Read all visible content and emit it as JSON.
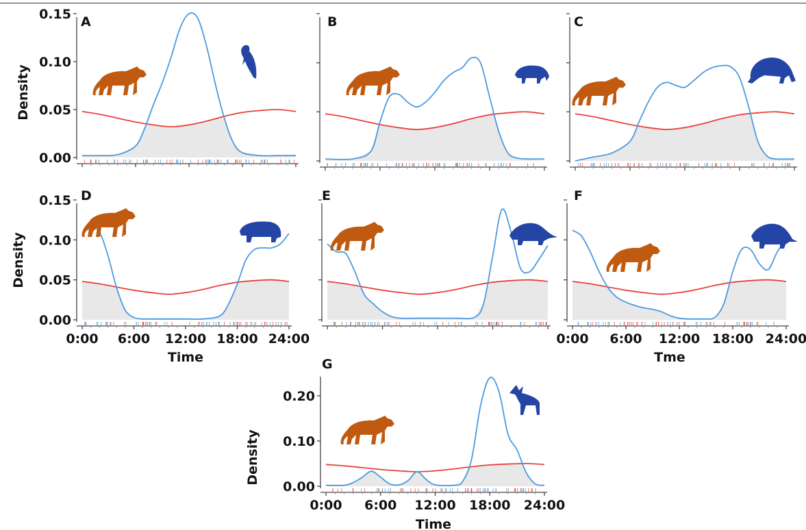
{
  "figure": {
    "colors": {
      "predator": "#e8413a",
      "prey": "#4a9ae0",
      "overlap_fill": "#e8e8e8",
      "predator_silhouette": "#c05a10",
      "prey_silhouette": "#2445a5",
      "axis": "#444444"
    },
    "icons": {
      "predator": "puma-silhouette-icon",
      "prey_a": "bird-silhouette-icon",
      "prey_b": "small-mammal-silhouette-icon",
      "prey_c": "anteater-silhouette-icon",
      "prey_d": "paca-silhouette-icon",
      "prey_e": "armadillo-silhouette-icon",
      "prey_f": "armadillo-silhouette-icon",
      "prey_g": "deer-silhouette-icon"
    }
  },
  "chart_data": [
    {
      "panel": "A",
      "type": "line",
      "xlim": [
        0,
        24
      ],
      "ylim": [
        0,
        0.15
      ],
      "yticks": [
        "0.00",
        "0.05",
        "0.10",
        "0.15"
      ],
      "xticks": [],
      "ylabel": "Density",
      "xlabel": "",
      "series": [
        {
          "role": "predator",
          "x": [
            0,
            2,
            4,
            6,
            8,
            10,
            12,
            14,
            16,
            18,
            20,
            22,
            24
          ],
          "values": [
            0.048,
            0.045,
            0.041,
            0.037,
            0.034,
            0.032,
            0.034,
            0.038,
            0.043,
            0.047,
            0.049,
            0.05,
            0.048
          ]
        },
        {
          "role": "prey",
          "x": [
            0,
            2,
            4,
            6,
            7,
            8,
            9,
            10,
            11,
            12,
            13,
            14,
            15,
            16,
            17,
            18,
            20,
            22,
            24
          ],
          "values": [
            0.002,
            0.002,
            0.003,
            0.012,
            0.03,
            0.055,
            0.078,
            0.105,
            0.135,
            0.15,
            0.145,
            0.115,
            0.075,
            0.04,
            0.015,
            0.005,
            0.002,
            0.002,
            0.002
          ]
        }
      ]
    },
    {
      "panel": "B",
      "type": "line",
      "xlim": [
        0,
        24
      ],
      "ylim": [
        0,
        0.15
      ],
      "yticks": [],
      "xticks": [],
      "ylabel": "",
      "xlabel": "",
      "series": [
        {
          "role": "predator",
          "x": [
            0,
            2,
            4,
            6,
            8,
            10,
            12,
            14,
            16,
            18,
            20,
            22,
            24
          ],
          "values": [
            0.048,
            0.045,
            0.041,
            0.037,
            0.034,
            0.032,
            0.034,
            0.038,
            0.043,
            0.047,
            0.049,
            0.05,
            0.048
          ]
        },
        {
          "role": "prey",
          "x": [
            0,
            3,
            5,
            6,
            7,
            8,
            9,
            10,
            11,
            12,
            13,
            14,
            15,
            16,
            17,
            18,
            19,
            20,
            21,
            22,
            24
          ],
          "values": [
            0.002,
            0.002,
            0.01,
            0.04,
            0.065,
            0.068,
            0.06,
            0.055,
            0.06,
            0.07,
            0.082,
            0.09,
            0.095,
            0.105,
            0.1,
            0.065,
            0.03,
            0.008,
            0.003,
            0.002,
            0.002
          ]
        }
      ]
    },
    {
      "panel": "C",
      "type": "line",
      "xlim": [
        0,
        24
      ],
      "ylim": [
        0,
        0.15
      ],
      "yticks": [],
      "xticks": [],
      "ylabel": "",
      "xlabel": "",
      "series": [
        {
          "role": "predator",
          "x": [
            0,
            2,
            4,
            6,
            8,
            10,
            12,
            14,
            16,
            18,
            20,
            22,
            24
          ],
          "values": [
            0.048,
            0.045,
            0.041,
            0.037,
            0.034,
            0.032,
            0.034,
            0.038,
            0.043,
            0.047,
            0.049,
            0.05,
            0.048
          ]
        },
        {
          "role": "prey",
          "x": [
            0,
            2,
            4,
            6,
            7,
            8,
            9,
            10,
            11,
            12,
            13,
            14,
            15,
            16,
            17,
            18,
            19,
            20,
            21,
            22,
            24
          ],
          "values": [
            0.0,
            0.004,
            0.008,
            0.02,
            0.04,
            0.06,
            0.075,
            0.08,
            0.077,
            0.075,
            0.082,
            0.09,
            0.095,
            0.097,
            0.096,
            0.085,
            0.055,
            0.02,
            0.005,
            0.002,
            0.002
          ]
        }
      ]
    },
    {
      "panel": "D",
      "type": "line",
      "xlim": [
        0,
        24
      ],
      "ylim": [
        0,
        0.15
      ],
      "yticks": [
        "0.00",
        "0.05",
        "0.10",
        "0.15"
      ],
      "xticks": [
        "0:00",
        "6:00",
        "12:00",
        "18:00",
        "24:00"
      ],
      "ylabel": "Density",
      "xlabel": "Time",
      "series": [
        {
          "role": "predator",
          "x": [
            0,
            2,
            4,
            6,
            8,
            10,
            12,
            14,
            16,
            18,
            20,
            22,
            24
          ],
          "values": [
            0.048,
            0.045,
            0.041,
            0.037,
            0.034,
            0.032,
            0.034,
            0.038,
            0.043,
            0.047,
            0.049,
            0.05,
            0.048
          ]
        },
        {
          "role": "prey",
          "x": [
            0,
            1,
            2,
            3,
            4,
            5,
            6,
            7,
            8,
            10,
            12,
            14,
            16,
            17,
            18,
            19,
            20,
            21,
            22,
            23,
            24
          ],
          "values": [
            0.108,
            0.115,
            0.11,
            0.08,
            0.04,
            0.012,
            0.003,
            0.001,
            0.001,
            0.001,
            0.001,
            0.001,
            0.005,
            0.02,
            0.045,
            0.075,
            0.088,
            0.09,
            0.09,
            0.095,
            0.108
          ]
        }
      ]
    },
    {
      "panel": "E",
      "type": "line",
      "xlim": [
        0,
        24
      ],
      "ylim": [
        0,
        0.15
      ],
      "yticks": [],
      "xticks": [],
      "ylabel": "",
      "xlabel": "",
      "series": [
        {
          "role": "predator",
          "x": [
            0,
            2,
            4,
            6,
            8,
            10,
            12,
            14,
            16,
            18,
            20,
            22,
            24
          ],
          "values": [
            0.048,
            0.045,
            0.041,
            0.037,
            0.034,
            0.032,
            0.034,
            0.038,
            0.043,
            0.047,
            0.049,
            0.05,
            0.048
          ]
        },
        {
          "role": "prey",
          "x": [
            0,
            1,
            2,
            3,
            4,
            5,
            6,
            7,
            8,
            10,
            12,
            14,
            16,
            17,
            18,
            19,
            20,
            21,
            22,
            23,
            24
          ],
          "values": [
            0.095,
            0.085,
            0.083,
            0.06,
            0.032,
            0.02,
            0.01,
            0.004,
            0.002,
            0.002,
            0.002,
            0.002,
            0.003,
            0.02,
            0.08,
            0.138,
            0.11,
            0.065,
            0.06,
            0.075,
            0.093
          ]
        }
      ]
    },
    {
      "panel": "F",
      "type": "line",
      "xlim": [
        0,
        24
      ],
      "ylim": [
        0,
        0.15
      ],
      "yticks": [],
      "xticks": [
        "0:00",
        "6:00",
        "12:00",
        "18:00",
        "24:00"
      ],
      "ylabel": "",
      "xlabel": "Tme",
      "series": [
        {
          "role": "predator",
          "x": [
            0,
            2,
            4,
            6,
            8,
            10,
            12,
            14,
            16,
            18,
            20,
            22,
            24
          ],
          "values": [
            0.048,
            0.045,
            0.041,
            0.037,
            0.034,
            0.032,
            0.034,
            0.038,
            0.043,
            0.047,
            0.049,
            0.05,
            0.048
          ]
        },
        {
          "role": "prey",
          "x": [
            0,
            1,
            2,
            3,
            4,
            5,
            6,
            7,
            8,
            9,
            10,
            11,
            12,
            13,
            14,
            15,
            16,
            17,
            18,
            19,
            20,
            21,
            22,
            23,
            24
          ],
          "values": [
            0.112,
            0.105,
            0.085,
            0.06,
            0.04,
            0.028,
            0.022,
            0.018,
            0.015,
            0.013,
            0.01,
            0.005,
            0.002,
            0.001,
            0.001,
            0.001,
            0.003,
            0.02,
            0.06,
            0.088,
            0.088,
            0.07,
            0.063,
            0.085,
            0.1
          ]
        }
      ]
    },
    {
      "panel": "G",
      "type": "line",
      "xlim": [
        0,
        24
      ],
      "ylim": [
        0,
        0.25
      ],
      "yticks": [
        "0.00",
        "0.10",
        "0.20"
      ],
      "xticks": [
        "0:00",
        "6:00",
        "12:00",
        "18:00",
        "24:00"
      ],
      "ylabel": "Density",
      "xlabel": "Time",
      "series": [
        {
          "role": "predator",
          "x": [
            0,
            2,
            4,
            6,
            8,
            10,
            12,
            14,
            16,
            18,
            20,
            22,
            24
          ],
          "values": [
            0.048,
            0.045,
            0.041,
            0.037,
            0.034,
            0.032,
            0.034,
            0.038,
            0.043,
            0.047,
            0.049,
            0.05,
            0.048
          ]
        },
        {
          "role": "prey",
          "x": [
            0,
            2,
            3,
            4,
            5,
            6,
            7,
            8,
            9,
            10,
            11,
            12,
            14,
            15,
            16,
            17,
            18,
            19,
            20,
            21,
            22,
            23,
            24
          ],
          "values": [
            0.002,
            0.002,
            0.008,
            0.02,
            0.033,
            0.02,
            0.005,
            0.003,
            0.012,
            0.032,
            0.015,
            0.003,
            0.002,
            0.01,
            0.06,
            0.18,
            0.24,
            0.21,
            0.115,
            0.08,
            0.03,
            0.005,
            0.002
          ]
        }
      ]
    }
  ]
}
